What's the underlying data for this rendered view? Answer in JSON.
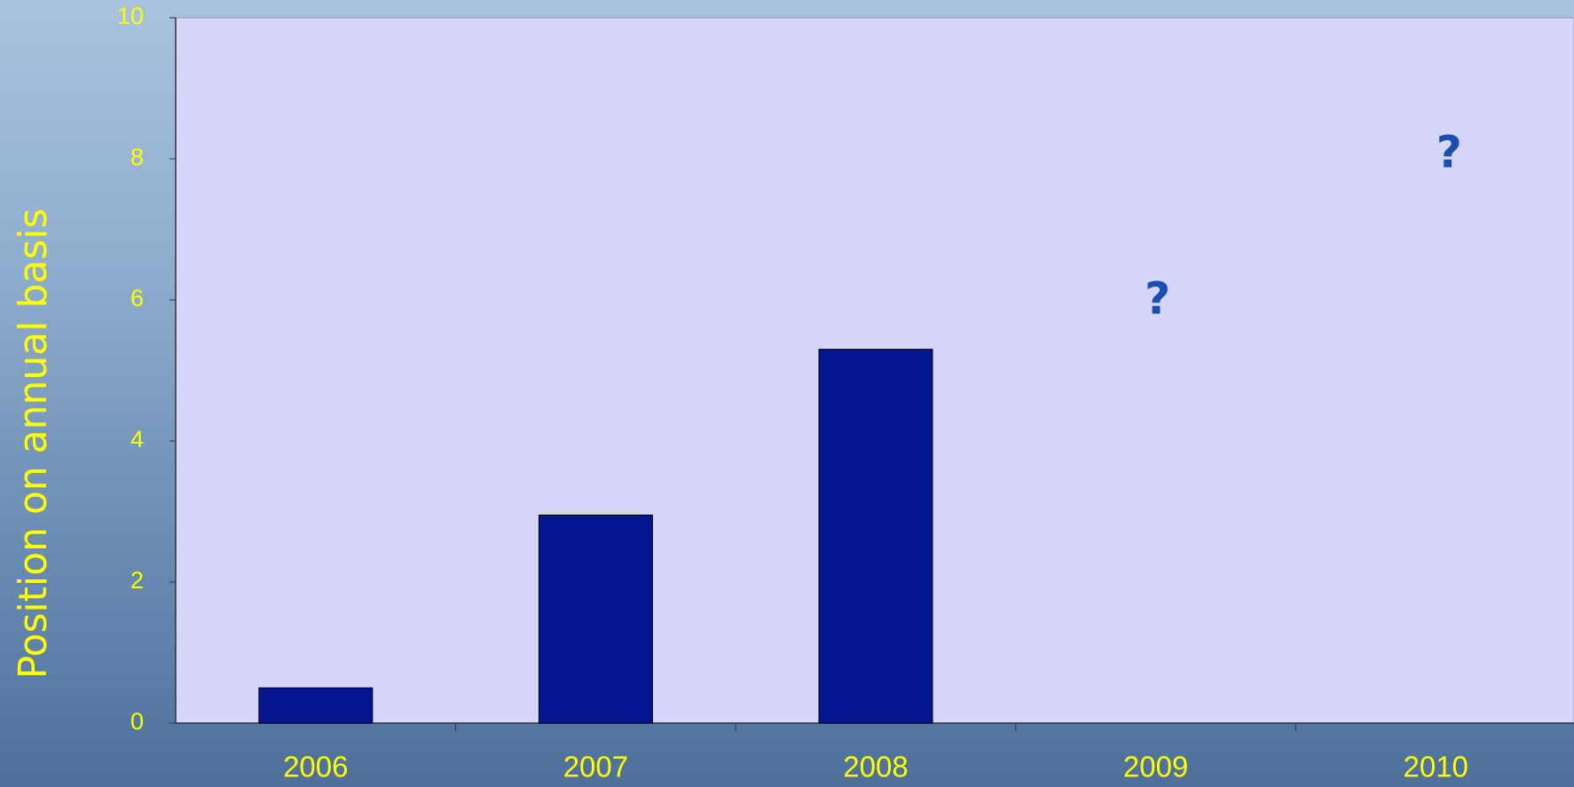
{
  "chart_data": {
    "type": "bar",
    "y_label": "Position on annual basis",
    "categories": [
      "2006",
      "2007",
      "2008",
      "2009",
      "2010"
    ],
    "values": [
      0.5,
      2.95,
      5.3,
      null,
      null
    ],
    "color": "#03168f",
    "ylim": [
      0,
      10
    ],
    "yticks": [
      0,
      2,
      4,
      6,
      8,
      10
    ],
    "annotations": [
      {
        "text": "?",
        "category": "2009"
      },
      {
        "text": "?",
        "category": "2010"
      }
    ]
  }
}
